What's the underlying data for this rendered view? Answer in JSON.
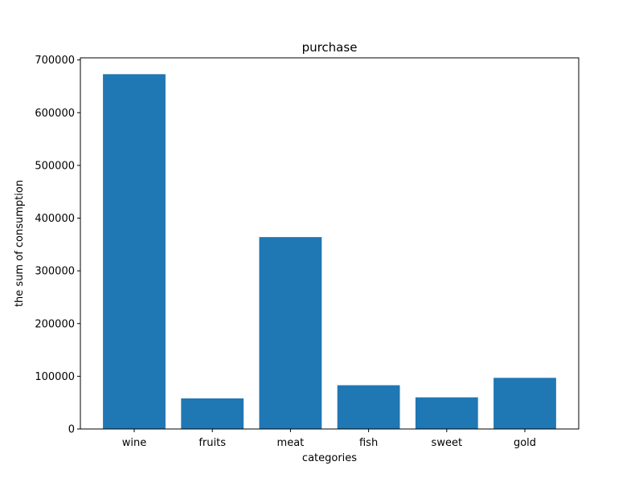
{
  "chart_data": {
    "type": "bar",
    "title": "purchase",
    "xlabel": "categories",
    "ylabel": "the sum of consumption",
    "categories": [
      "wine",
      "fruits",
      "meat",
      "fish",
      "sweet",
      "gold"
    ],
    "values": [
      673000,
      58000,
      364000,
      83000,
      60000,
      97000
    ],
    "ylim": [
      0,
      704000
    ],
    "yticks": [
      0,
      100000,
      200000,
      300000,
      400000,
      500000,
      600000,
      700000
    ],
    "ytick_labels": [
      "0",
      "100000",
      "200000",
      "300000",
      "400000",
      "500000",
      "600000",
      "700000"
    ],
    "grid": false,
    "bar_color": "#1f77b4"
  }
}
